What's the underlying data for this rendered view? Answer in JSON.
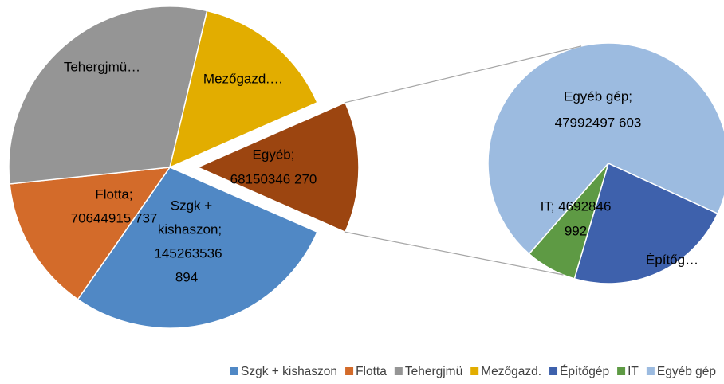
{
  "chart_data": {
    "type": "pie-of-pie",
    "categories": [
      "Szgk + kishaszon",
      "Flotta",
      "Tehergjmü",
      "Mezőgazd.",
      "Építőgép",
      "IT",
      "Egyéb gép"
    ],
    "values": [
      145263536894,
      70644915737,
      157000000000,
      76000000000,
      15465001675,
      4692846992,
      47992497603
    ],
    "colors": [
      "#5088c5",
      "#d36b2a",
      "#959595",
      "#e2ad00",
      "#3e61ac",
      "#5e9a44",
      "#9cbbe0"
    ],
    "secondary_count": 3,
    "data_labels": [
      [
        "Szgk +",
        "kishaszon;",
        "145263536",
        "894"
      ],
      [
        "Flotta;",
        "70644915 737"
      ],
      [
        "Tehergjmü…"
      ],
      [
        "Mezőgazd.…"
      ],
      [
        "Építőg…"
      ],
      [
        "IT; 4692846",
        "992"
      ],
      [
        "Egyéb gép;",
        "47992497 603"
      ]
    ],
    "other": {
      "label_lines": [
        "Egyéb;",
        "68150346 270"
      ],
      "color": "#9c4510"
    },
    "legend": "bottom"
  }
}
